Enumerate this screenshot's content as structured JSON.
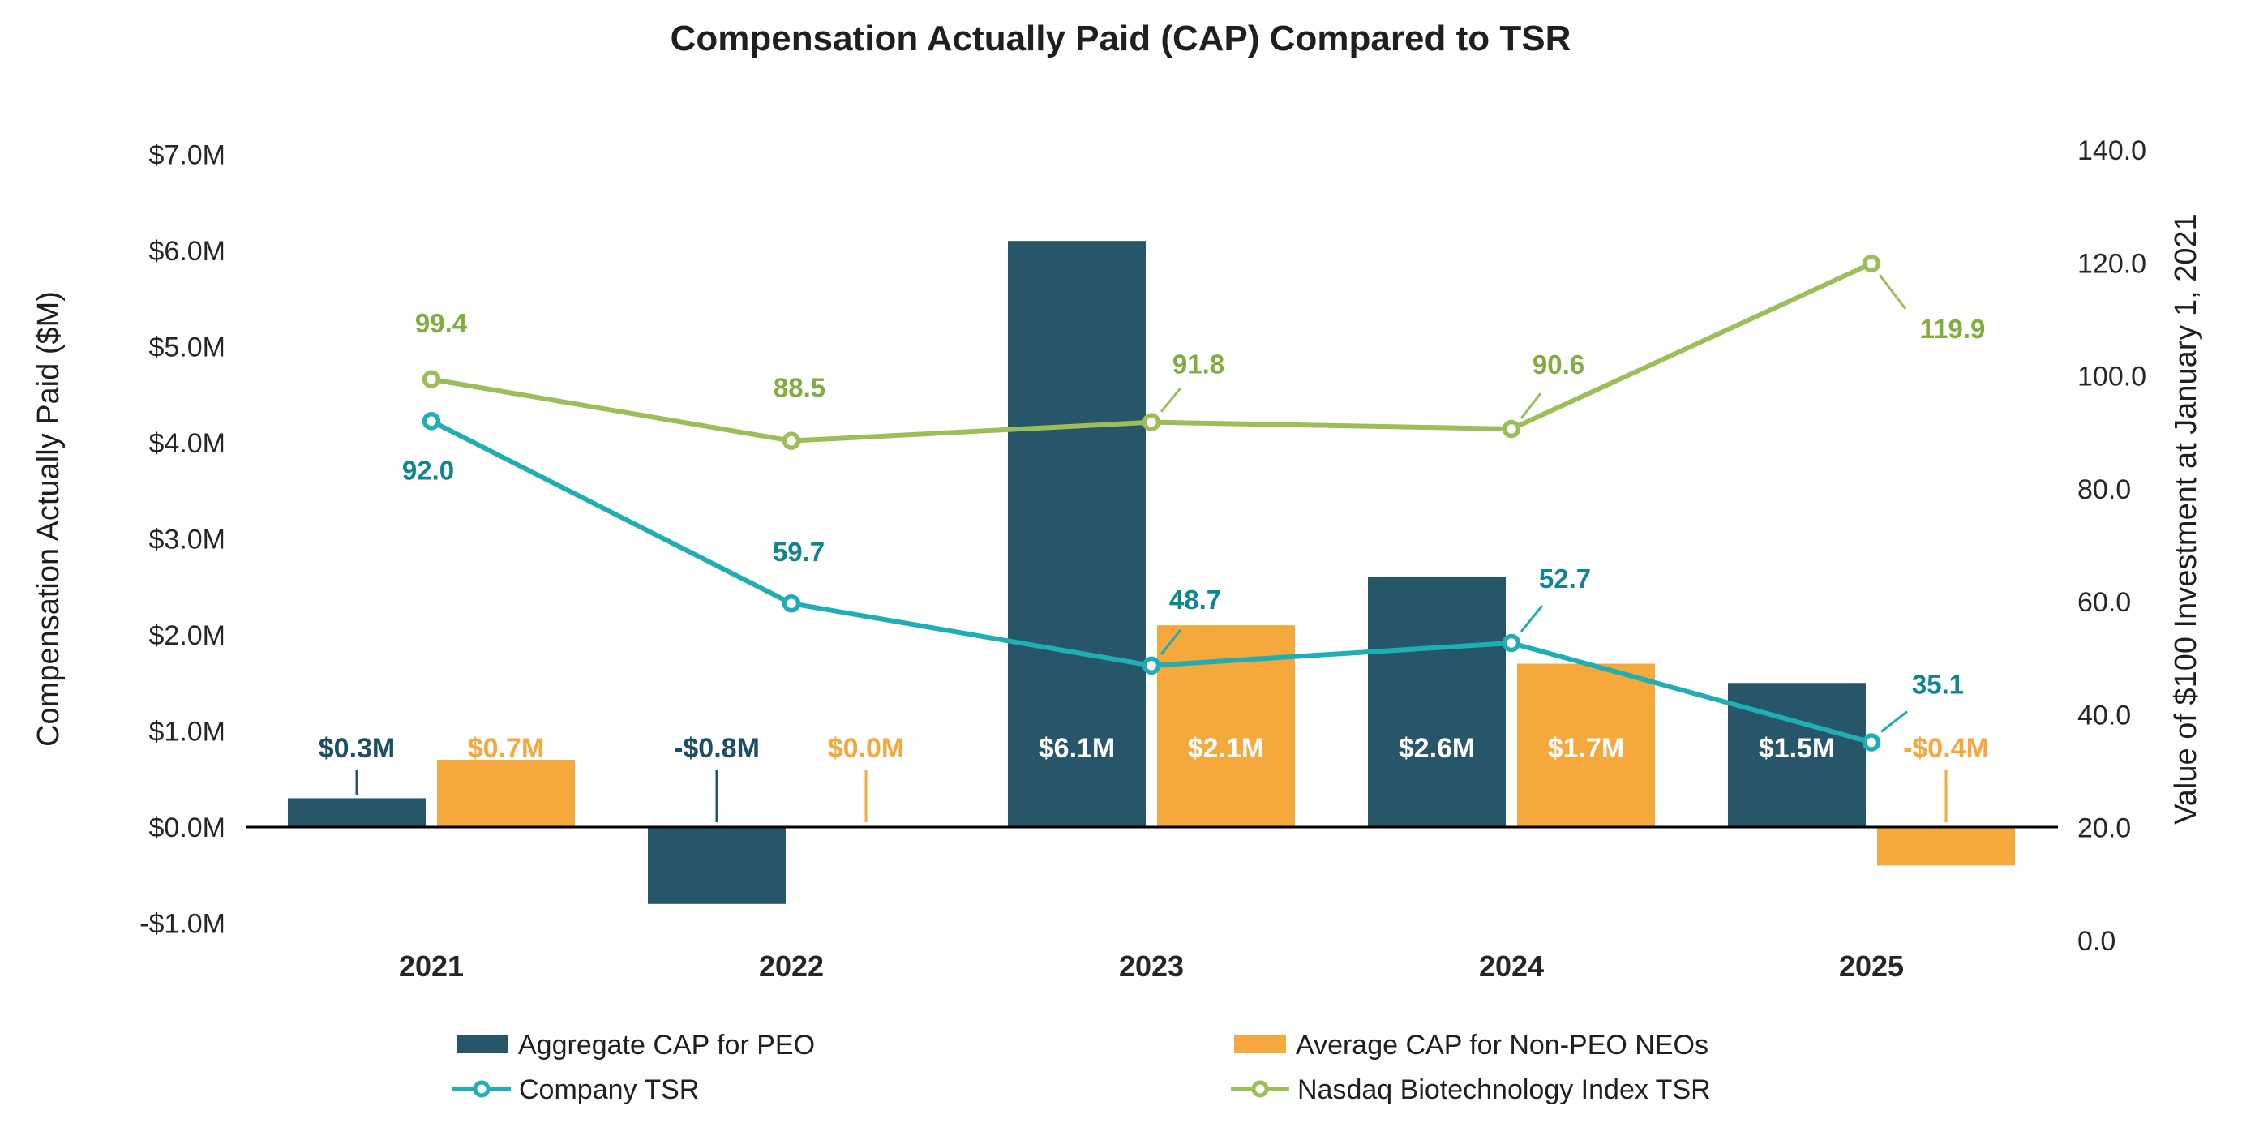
{
  "title": "Compensation Actually Paid (CAP) Compared to TSR",
  "chart_data": {
    "type": "combo-bar-line",
    "categories": [
      "2021",
      "2022",
      "2023",
      "2024",
      "2025"
    ],
    "bar_series": [
      {
        "name": "Aggregate CAP for PEO",
        "axis": "left",
        "color": "#27566B",
        "label_color": "#1C4F63",
        "values": [
          0.3,
          -0.8,
          6.1,
          2.6,
          1.5
        ],
        "labels": [
          "$0.3M",
          "-$0.8M",
          "$6.1M",
          "$2.6M",
          "$1.5M"
        ]
      },
      {
        "name": "Average CAP for Non-PEO NEOs",
        "axis": "left",
        "color": "#F5A83C",
        "label_color": "#F5A83C",
        "values": [
          0.7,
          0.0,
          2.1,
          1.7,
          -0.4
        ],
        "labels": [
          "$0.7M",
          "$0.0M",
          "$2.1M",
          "$1.7M",
          "-$0.4M"
        ]
      }
    ],
    "line_series": [
      {
        "name": "Company TSR",
        "axis": "right",
        "color": "#1FAEB4",
        "label_color": "#0F858D",
        "values": [
          92.0,
          59.7,
          48.7,
          52.7,
          35.1
        ],
        "labels": [
          "92.0",
          "59.7",
          "48.7",
          "52.7",
          "35.1"
        ]
      },
      {
        "name": "Nasdaq Biotechnology Index TSR",
        "axis": "right",
        "color": "#9BBE59",
        "label_color": "#83AC3E",
        "values": [
          99.4,
          88.5,
          91.8,
          90.6,
          119.9
        ],
        "labels": [
          "99.4",
          "88.5",
          "91.8",
          "90.6",
          "119.9"
        ]
      }
    ],
    "left_axis": {
      "title": "Compensation Actually Paid ($M)",
      "tick_labels": [
        "$7.0M",
        "$6.0M",
        "$5.0M",
        "$4.0M",
        "$3.0M",
        "$2.0M",
        "$1.0M",
        "$0.0M",
        "-$1.0M"
      ],
      "tick_values": [
        7,
        6,
        5,
        4,
        3,
        2,
        1,
        0,
        -1
      ],
      "min": -1,
      "max": 7
    },
    "right_axis": {
      "title": "Value of $100 Investment at January 1, 2021",
      "tick_labels": [
        "140.0",
        "120.0",
        "100.0",
        "80.0",
        "60.0",
        "40.0",
        "20.0",
        "0.0"
      ],
      "tick_values": [
        140,
        120,
        100,
        80,
        60,
        40,
        20,
        0
      ],
      "min": 0,
      "max": 140
    },
    "legend": {
      "position": "bottom",
      "entries": [
        "Aggregate CAP for PEO",
        "Average CAP for Non-PEO NEOs",
        "Company TSR",
        "Nasdaq Biotechnology Index TSR"
      ]
    },
    "grid": false
  }
}
